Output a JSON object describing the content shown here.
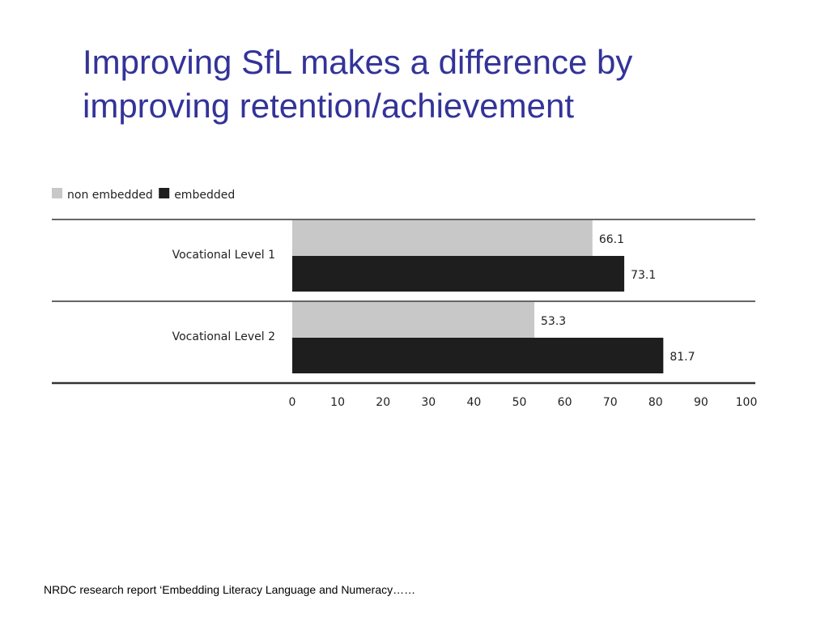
{
  "slide": {
    "title_line1": "Improving SfL makes a difference by",
    "title_line2": "improving retention/achievement",
    "footnote": "NRDC research report ‘Embedding Literacy Language and Numeracy……"
  },
  "chart_data": {
    "type": "bar",
    "orientation": "horizontal",
    "categories": [
      "Vocational Level 1",
      "Vocational Level 2"
    ],
    "series": [
      {
        "name": "non embedded",
        "values": [
          66.1,
          53.3
        ],
        "color": "#c8c8c8"
      },
      {
        "name": "embedded",
        "values": [
          73.1,
          81.7
        ],
        "color": "#1e1e1e"
      }
    ],
    "xlim": [
      0,
      100
    ],
    "ticks": [
      0,
      10,
      20,
      30,
      40,
      50,
      60,
      70,
      80,
      90,
      100
    ],
    "value_labels": [
      "66.1",
      "53.3",
      "73.1",
      "81.7"
    ],
    "legend_position": "top-left",
    "grid": false
  }
}
